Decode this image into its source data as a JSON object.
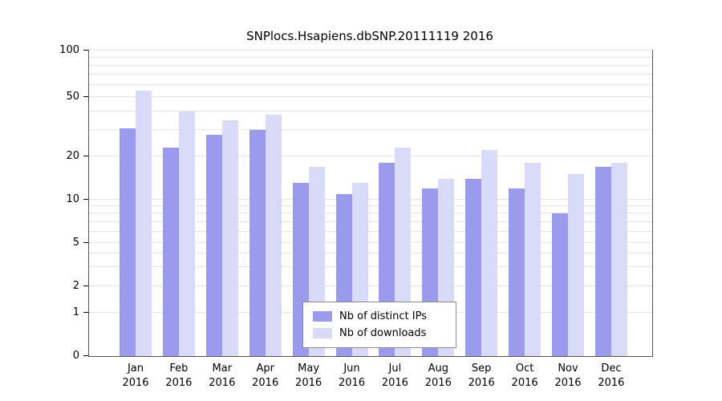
{
  "title": "SNPlocs.Hsapiens.dbSNP.20111119 2016",
  "chart_data": {
    "type": "bar",
    "title": "SNPlocs.Hsapiens.dbSNP.20111119 2016",
    "categories": [
      "Jan",
      "Feb",
      "Mar",
      "Apr",
      "May",
      "Jun",
      "Jul",
      "Aug",
      "Sep",
      "Oct",
      "Nov",
      "Dec"
    ],
    "year_label": "2016",
    "series": [
      {
        "name": "Nb of distinct IPs",
        "color": "#9b9bee",
        "values": [
          31,
          23,
          28,
          30,
          13,
          11,
          18,
          12,
          14,
          12,
          8,
          17
        ]
      },
      {
        "name": "Nb of downloads",
        "color": "#d9d9f8",
        "values": [
          55,
          40,
          35,
          38,
          17,
          13,
          23,
          14,
          22,
          18,
          15,
          18
        ]
      }
    ],
    "yticks": [
      0,
      1,
      2,
      5,
      10,
      20,
      50,
      100
    ],
    "gridlines": [
      1,
      2,
      3,
      4,
      5,
      6,
      7,
      8,
      9,
      10,
      20,
      30,
      40,
      50,
      60,
      70,
      80,
      90,
      100
    ],
    "ylim": [
      0,
      100
    ],
    "yscale": "log",
    "grid": true,
    "legend_position": "inside-bottom-center"
  }
}
